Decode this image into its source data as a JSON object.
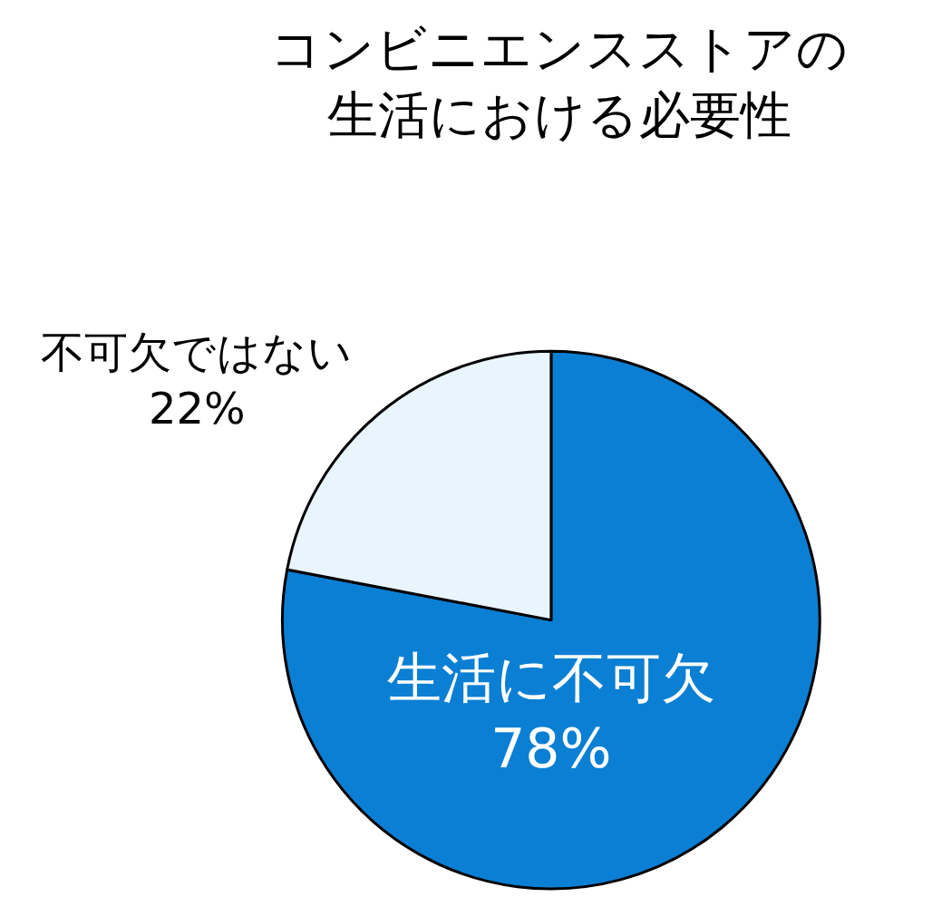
{
  "chart_data": {
    "type": "pie",
    "title": "コンビニエンスストアの生活における必要性",
    "categories": [
      "生活に不可欠",
      "不可欠ではない"
    ],
    "values": [
      78,
      22
    ],
    "value_labels": [
      "78%",
      "22%"
    ],
    "colors": [
      "#0b7fd3",
      "#e9f5fd"
    ],
    "legend": false
  }
}
